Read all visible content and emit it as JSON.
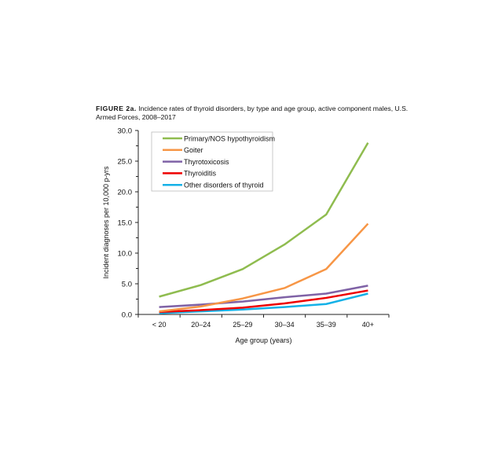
{
  "caption": {
    "label": "FIGURE 2a.",
    "text": " Incidence rates of thyroid disorders, by type and age group, active component males, U.S. Armed Forces, 2008–2017"
  },
  "chart_data": {
    "type": "line",
    "title": "",
    "xlabel": "Age group (years)",
    "ylabel": "Incident diagnoses per 10,000 p-yrs",
    "categories": [
      "< 20",
      "20–24",
      "25–29",
      "30–34",
      "35–39",
      "40+"
    ],
    "ylim": [
      0,
      30
    ],
    "yticks": [
      "0.0",
      "5.0",
      "10.0",
      "15.0",
      "20.0",
      "25.0",
      "30.0"
    ],
    "grid": false,
    "legend_position": "top-left",
    "series": [
      {
        "name": "Primary/NOS hypothyroidism",
        "color": "#8fbc4f",
        "values": [
          2.9,
          4.8,
          7.4,
          11.4,
          16.3,
          28.0
        ]
      },
      {
        "name": "Goiter",
        "color": "#f79646",
        "values": [
          0.5,
          1.3,
          2.6,
          4.3,
          7.4,
          14.8
        ]
      },
      {
        "name": "Thyrotoxicosis",
        "color": "#7f62a6",
        "values": [
          1.2,
          1.6,
          2.1,
          2.8,
          3.4,
          4.7
        ]
      },
      {
        "name": "Thyroiditis",
        "color": "#ee0000",
        "values": [
          0.4,
          0.7,
          1.1,
          1.8,
          2.7,
          3.9
        ]
      },
      {
        "name": "Other disorders of thyroid",
        "color": "#14b1e7",
        "values": [
          0.2,
          0.5,
          0.8,
          1.2,
          1.7,
          3.4
        ]
      }
    ]
  }
}
